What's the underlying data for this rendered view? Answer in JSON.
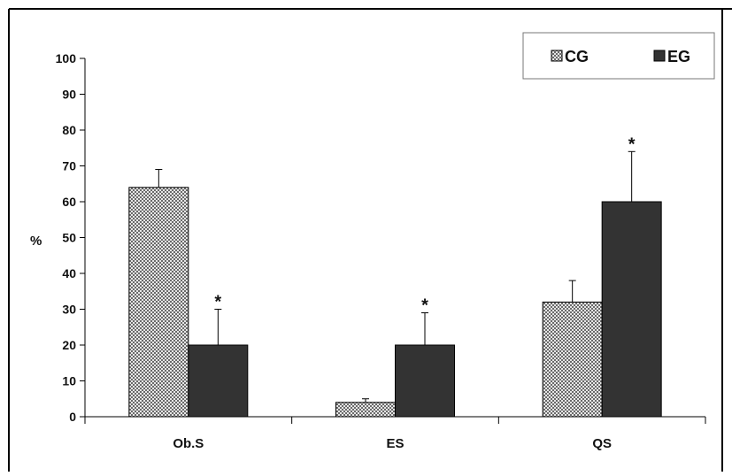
{
  "chart_data": {
    "type": "bar",
    "title": "",
    "xlabel": "",
    "ylabel": "%",
    "ylim": [
      0,
      100
    ],
    "yticks": [
      0,
      10,
      20,
      30,
      40,
      50,
      60,
      70,
      80,
      90,
      100
    ],
    "categories": [
      "Ob.S",
      "ES",
      "QS"
    ],
    "series": [
      {
        "name": "CG",
        "pattern": "checkered",
        "color": "#555555",
        "values": [
          64,
          4,
          32
        ],
        "error": [
          5,
          1,
          6
        ],
        "significance": [
          "",
          "",
          ""
        ]
      },
      {
        "name": "EG",
        "pattern": "solid",
        "color": "#333333",
        "values": [
          20,
          20,
          60
        ],
        "error": [
          10,
          9,
          14
        ],
        "significance": [
          "*",
          "*",
          "*"
        ]
      }
    ],
    "legend": {
      "placement": "top-right",
      "items": [
        "CG",
        "EG"
      ]
    },
    "grid": false
  }
}
